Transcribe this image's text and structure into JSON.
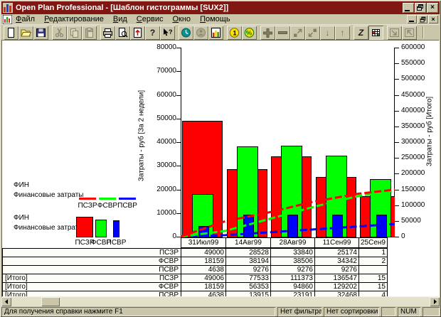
{
  "window": {
    "title": "Open Plan Professional - [Шаблон гистограммы [SUX2]]"
  },
  "menu": {
    "items": [
      "Файл",
      "Редактирование",
      "Вид",
      "Сервис",
      "Окно",
      "Помощь"
    ]
  },
  "icons": {
    "help": "?",
    "context_help": "?",
    "zoom_z": "Z",
    "percent": "%",
    "coin_1": "1",
    "arrow_up": "↑",
    "arrow_down": "↓",
    "plus": "+",
    "minus": "−",
    "close": "×",
    "minimize": "_"
  },
  "legend_lines": {
    "code": "ФИН",
    "name": "Финансовые затраты",
    "items": [
      "ПСЗР",
      "ФСВР",
      "ПСВР"
    ]
  },
  "legend_bars": {
    "code": "ФИН",
    "name": "Финансовые затраты",
    "items": [
      "ПСЗР",
      "ФСВР",
      "ПСВР"
    ]
  },
  "chart_data": {
    "type": "bar+line",
    "categories": [
      "31Июл99",
      "14Авг99",
      "28Авг99",
      "11Сен99",
      "25Сен9"
    ],
    "bar_series": [
      {
        "name": "ПСЗР",
        "color": "#ff0000",
        "values": [
          49000,
          28528,
          33840,
          25174,
          17000
        ]
      },
      {
        "name": "ФСВР",
        "color": "#00ff00",
        "values": [
          18159,
          38194,
          38506,
          34342,
          24500
        ]
      },
      {
        "name": "ПСВР",
        "color": "#0000ff",
        "values": [
          4638,
          9276,
          9276,
          9276,
          9276
        ]
      }
    ],
    "line_series": [
      {
        "name": "ПСЗР",
        "color": "#ff0000",
        "values": [
          49006,
          77533,
          111373,
          136547,
          152000
        ]
      },
      {
        "name": "ФСВР",
        "color": "#00ff00",
        "values": [
          18159,
          56353,
          94860,
          129202,
          150000
        ]
      },
      {
        "name": "ПСВР",
        "color": "#0000ff",
        "values": [
          4638,
          13915,
          23191,
          32468,
          42000
        ]
      }
    ],
    "left_axis": {
      "label": "Затраты - руб [За 2 недели]",
      "min": 0,
      "max": 80000,
      "step": 10000
    },
    "right_axis": {
      "label": "Затраты - руб [Итого]",
      "min": 0,
      "max": 600000,
      "step": 50000
    },
    "grid": false,
    "legend_position": "left"
  },
  "table": {
    "rows": [
      {
        "group": "",
        "label": "ПСЗР",
        "values": [
          "49000",
          "28528",
          "33840",
          "25174",
          "1"
        ]
      },
      {
        "group": "",
        "label": "ФСВР",
        "values": [
          "18159",
          "38194",
          "38506",
          "34342",
          "2"
        ]
      },
      {
        "group": "",
        "label": "ПСВР",
        "values": [
          "4638",
          "9276",
          "9276",
          "9276",
          ""
        ]
      },
      {
        "group": "[Итого]",
        "label": "ПСЗР",
        "values": [
          "49006",
          "77533",
          "111373",
          "136547",
          "15"
        ]
      },
      {
        "group": "[Итого]",
        "label": "ФСВР",
        "values": [
          "18159",
          "56353",
          "94860",
          "129202",
          "15"
        ]
      },
      {
        "group": "[Итого]",
        "label": "ПСВР",
        "values": [
          "4638",
          "13915",
          "23191",
          "32468",
          "4"
        ]
      }
    ]
  },
  "status": {
    "help": "Для получения справки нажмите F1",
    "filter": "Нет фильтра",
    "sort": "Нет сортировки",
    "num": "NUM"
  }
}
